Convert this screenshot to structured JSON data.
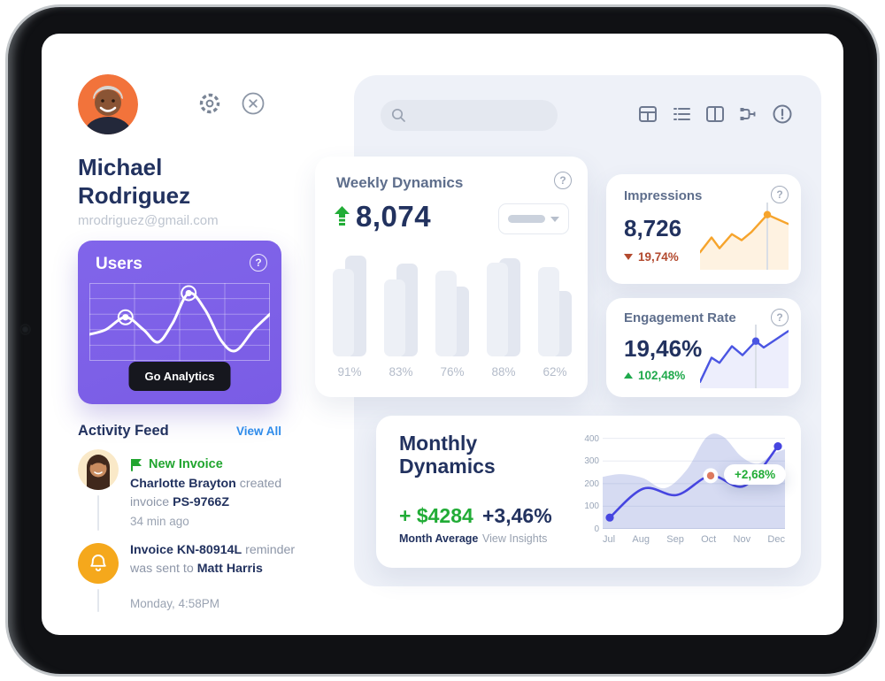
{
  "profile": {
    "name": "Michael\nRodriguez",
    "email": "mrodriguez@gmail.com"
  },
  "sidebar": {
    "users_card": {
      "title": "Users",
      "button_label": "Go Analytics"
    },
    "activity": {
      "title": "Activity Feed",
      "view_all": "View All",
      "items": [
        {
          "badge": "New Invoice",
          "segments": [
            {
              "t": "Charlotte Brayton",
              "b": 1
            },
            {
              "t": " created invoice ",
              "b": 0
            },
            {
              "t": "PS-9766Z",
              "b": 1
            }
          ],
          "time": "34 min ago"
        },
        {
          "segments": [
            {
              "t": "Invoice KN-80914L",
              "b": 1
            },
            {
              "t": " reminder was sent to ",
              "b": 0
            },
            {
              "t": "Matt Harris",
              "b": 1
            }
          ],
          "time": "Monday, 4:58PM"
        }
      ]
    }
  },
  "search": {
    "placeholder": ""
  },
  "toolbar_icons": [
    "table-view",
    "list-view",
    "split-view",
    "flow-view",
    "alerts"
  ],
  "weekly": {
    "title": "Weekly Dynamics",
    "value": "8,074"
  },
  "impressions": {
    "title": "Impressions",
    "value": "8,726",
    "delta": "19,74%"
  },
  "engagement": {
    "title": "Engagement Rate",
    "value": "19,46%",
    "delta": "102,48%"
  },
  "monthly": {
    "title": "Monthly\nDynamics",
    "amount": "+ $4284",
    "amount_label": "Month Average",
    "percent": "+3,46%",
    "percent_label": "View Insights",
    "tooltip": "+2,68%"
  },
  "colors": {
    "navy": "#22325F",
    "slate": "#5E6E8C",
    "green": "#21AC36",
    "rust": "#B34A2F",
    "purple": "#7C5EE6",
    "orange": "#F6A42C",
    "indigo": "#4A52E0",
    "link_blue": "#2E8BEA",
    "panel": "#EEF1F8"
  },
  "chart_data": [
    {
      "id": "users-spark",
      "type": "line",
      "smooth": true,
      "title": "Users",
      "points": [
        [
          0,
          66
        ],
        [
          9,
          60
        ],
        [
          20,
          44
        ],
        [
          30,
          60
        ],
        [
          38,
          76
        ],
        [
          46,
          52
        ],
        [
          55,
          13
        ],
        [
          64,
          34
        ],
        [
          73,
          74
        ],
        [
          81,
          87
        ],
        [
          91,
          60
        ],
        [
          100,
          40
        ]
      ],
      "markers": [
        [
          20,
          44
        ],
        [
          55,
          13
        ]
      ],
      "line_color": "#FFFFFF",
      "grid": {
        "cols": 4,
        "rows": 5
      }
    },
    {
      "id": "weekly-bars",
      "type": "bar",
      "categories": [
        "91%",
        "83%",
        "76%",
        "88%",
        "62%"
      ],
      "series": [
        {
          "name": "previous",
          "values": [
            97,
            89,
            67,
            94,
            63
          ],
          "color": "#E3E7F0"
        },
        {
          "name": "current",
          "values": [
            84,
            74,
            82,
            90,
            86
          ],
          "color": "#EDF0F6"
        }
      ],
      "ylim": [
        0,
        100
      ]
    },
    {
      "id": "impressions-spark",
      "type": "line",
      "smooth": false,
      "title": "Impressions",
      "points": [
        [
          0,
          74
        ],
        [
          13,
          52
        ],
        [
          22,
          68
        ],
        [
          36,
          47
        ],
        [
          47,
          56
        ],
        [
          58,
          44
        ],
        [
          76,
          18
        ],
        [
          100,
          32
        ]
      ],
      "marker": [
        76,
        18
      ],
      "line_color": "#F6A42C",
      "fill": "rgba(246,164,44,0.14)"
    },
    {
      "id": "engagement-spark",
      "type": "line",
      "smooth": false,
      "title": "Engagement Rate",
      "points": [
        [
          0,
          90
        ],
        [
          13,
          52
        ],
        [
          22,
          60
        ],
        [
          36,
          34
        ],
        [
          48,
          48
        ],
        [
          63,
          26
        ],
        [
          72,
          36
        ],
        [
          100,
          10
        ]
      ],
      "marker": [
        63,
        26
      ],
      "line_color": "#4A55E2",
      "fill": "rgba(74,85,226,0.10)"
    },
    {
      "id": "monthly",
      "type": "area-line",
      "title": "Monthly Dynamics",
      "x_labels": [
        "Jul",
        "Aug",
        "Sep",
        "Oct",
        "Nov",
        "Dec"
      ],
      "y_ticks": [
        0,
        100,
        200,
        300,
        400
      ],
      "y_max": 430,
      "line_values": [
        50,
        178,
        150,
        235,
        190,
        365
      ],
      "line_color": "#4645E0",
      "area_points": [
        [
          0,
          230
        ],
        [
          10,
          242
        ],
        [
          22,
          225
        ],
        [
          34,
          180
        ],
        [
          46,
          260
        ],
        [
          57,
          405
        ],
        [
          66,
          408
        ],
        [
          76,
          320
        ],
        [
          85,
          288
        ],
        [
          93,
          330
        ],
        [
          100,
          352
        ]
      ],
      "area_color": "rgba(106,125,210,0.28)",
      "highlight_index": 3,
      "highlight_color": "#DD7A5F",
      "end_marker_indexes": [
        0,
        5
      ]
    }
  ]
}
